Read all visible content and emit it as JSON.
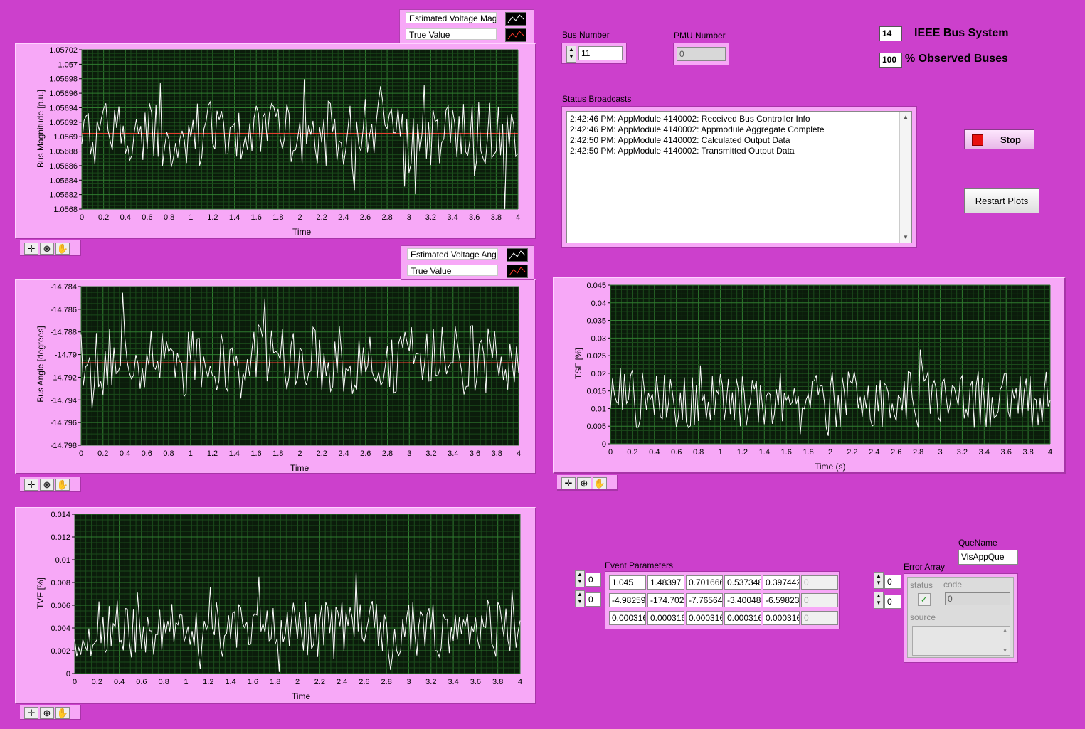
{
  "plots": {
    "mag": {
      "ylabel": "Bus Magnitude [p.u.]",
      "xlabel": "Time",
      "legend": [
        "Estimated Voltage Mag",
        "True Value"
      ],
      "yticks": [
        "1.05702",
        "1.057",
        "1.05698",
        "1.05696",
        "1.05694",
        "1.05692",
        "1.0569",
        "1.05688",
        "1.05686",
        "1.05684",
        "1.05682",
        "1.0568"
      ],
      "xticks": [
        "0",
        "0.2",
        "0.4",
        "0.6",
        "0.8",
        "1",
        "1.2",
        "1.4",
        "1.6",
        "1.8",
        "2",
        "2.2",
        "2.4",
        "2.6",
        "2.8",
        "3",
        "3.2",
        "3.4",
        "3.6",
        "3.8",
        "4"
      ]
    },
    "ang": {
      "ylabel": "Bus Angle [degrees]",
      "xlabel": "Time",
      "legend": [
        "Estimated Voltage Ang",
        "True Value"
      ],
      "yticks": [
        "-14.784",
        "-14.786",
        "-14.788",
        "-14.79",
        "-14.792",
        "-14.794",
        "-14.796",
        "-14.798"
      ],
      "xticks": [
        "0",
        "0.2",
        "0.4",
        "0.6",
        "0.8",
        "1",
        "1.2",
        "1.4",
        "1.6",
        "1.8",
        "2",
        "2.2",
        "2.4",
        "2.6",
        "2.8",
        "3",
        "3.2",
        "3.4",
        "3.6",
        "3.8",
        "4"
      ]
    },
    "tve": {
      "ylabel": "TVE [%]",
      "xlabel": "Time",
      "yticks": [
        "0.014",
        "0.012",
        "0.01",
        "0.008",
        "0.006",
        "0.004",
        "0.002",
        "0"
      ],
      "xticks": [
        "0",
        "0.2",
        "0.4",
        "0.6",
        "0.8",
        "1",
        "1.2",
        "1.4",
        "1.6",
        "1.8",
        "2",
        "2.2",
        "2.4",
        "2.6",
        "2.8",
        "3",
        "3.2",
        "3.4",
        "3.6",
        "3.8",
        "4"
      ]
    },
    "tse": {
      "ylabel": "TSE [%]",
      "xlabel": "Time (s)",
      "yticks": [
        "0.045",
        "0.04",
        "0.035",
        "0.03",
        "0.025",
        "0.02",
        "0.015",
        "0.01",
        "0.005",
        "0"
      ],
      "xticks": [
        "0",
        "0.2",
        "0.4",
        "0.6",
        "0.8",
        "1",
        "1.2",
        "1.4",
        "1.6",
        "1.8",
        "2",
        "2.2",
        "2.4",
        "2.6",
        "2.8",
        "3",
        "3.2",
        "3.4",
        "3.6",
        "3.8",
        "4"
      ]
    }
  },
  "controls": {
    "bus_number_label": "Bus Number",
    "bus_number_value": "11",
    "pmu_number_label": "PMU Number",
    "pmu_number_value": "0",
    "ieee_bus_value": "14",
    "ieee_bus_label": "IEEE Bus System",
    "observed_value": "100",
    "observed_label": "% Observed Buses",
    "stop_label": "Stop",
    "restart_label": "Restart Plots"
  },
  "status": {
    "label": "Status Broadcasts",
    "lines": [
      "2:42:46 PM: AppModule 4140002: Received Bus Controller Info",
      "2:42:46 PM: AppModule 4140002: Appmodule Aggregate Complete",
      "2:42:50 PM: AppModule 4140002: Calculated Output Data",
      "2:42:50 PM: AppModule 4140002: Transmitted Output Data"
    ]
  },
  "event": {
    "label": "Event Parameters",
    "index_row": "0",
    "index_col": "0",
    "rows": [
      [
        "1.045",
        "1.48397",
        "0.701666",
        "0.537348",
        "0.397442",
        "0"
      ],
      [
        "-4.98259",
        "-174.702",
        "-7.76564",
        "-3.40048",
        "-6.59823",
        "0"
      ],
      [
        "0.000316",
        "0.000316",
        "0.000316",
        "0.000316",
        "0.000316",
        "0"
      ]
    ]
  },
  "queue": {
    "label": "QueName",
    "value": "VisAppQue"
  },
  "error": {
    "label": "Error Array",
    "index_a": "0",
    "index_b": "0",
    "status_label": "status",
    "code_label": "code",
    "code_value": "0",
    "source_label": "source"
  },
  "colors": {
    "background": "#cc40cc",
    "panel": "#f7a8f7",
    "plot_bg": "#0b1c0b",
    "grid": "#2f6b2f",
    "trace": "#ffffff",
    "true_value": "#ff3b2f"
  }
}
